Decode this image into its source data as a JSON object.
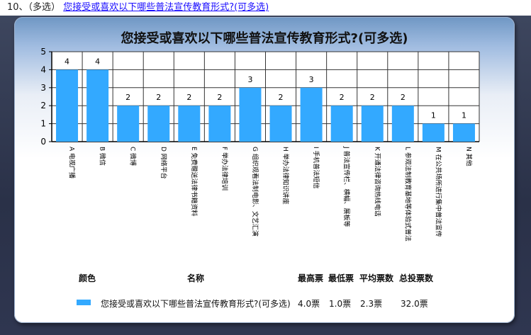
{
  "question": {
    "number": "10、",
    "type": "（多选）",
    "link_text": "您接受或喜欢以下哪些普法宣传教育形式?(可多选)"
  },
  "colors": {
    "bar": "#33a9ff",
    "grid": "#333333"
  },
  "chart_data": {
    "type": "bar",
    "title": "您接受或喜欢以下哪些普法宣传教育形式?(可多选)",
    "categories": [
      "A 电视广播",
      "B 微信",
      "C 微博",
      "D 网络平台",
      "E 免费赠送法律书籍资料",
      "F 举办法律培训",
      "G 组织观看法制电影、文艺汇演",
      "H 举办法律知识讲座",
      "I 手机普法短信",
      "J 普法宣传栏、横幅、展板等",
      "K 开通法律咨询热线电话",
      "L 参观法制教育基地等体验式普法",
      "M 在公共场所进行集中普法宣传",
      "N 其他"
    ],
    "values": [
      4,
      4,
      2,
      2,
      2,
      2,
      3,
      2,
      3,
      2,
      2,
      2,
      1,
      1
    ],
    "ylim": [
      0,
      5
    ],
    "yticks": [
      "0",
      "1",
      "2",
      "3",
      "4",
      "5"
    ],
    "grid": true
  },
  "legend": {
    "headers": {
      "color": "颜色",
      "name": "名称",
      "max": "最高票",
      "min": "最低票",
      "avg": "平均票数",
      "total": "总投票数"
    },
    "row": {
      "name": "您接受或喜欢以下哪些普法宣传教育形式?(可多选)",
      "max": "4.0票",
      "min": "1.0票",
      "avg": "2.3票",
      "total": "32.0票"
    }
  }
}
